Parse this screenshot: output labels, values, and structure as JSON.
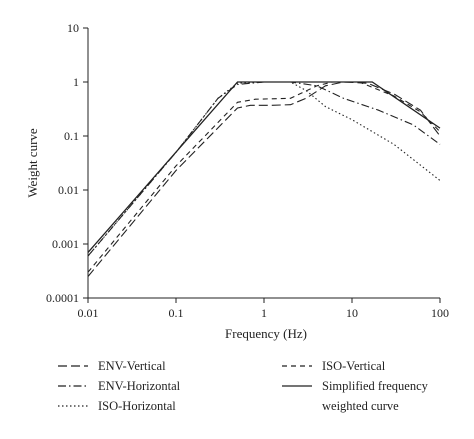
{
  "chart_data": {
    "type": "line",
    "xlabel": "Frequency (Hz)",
    "ylabel": "Weight curve",
    "x_scale": "log",
    "y_scale": "log",
    "xlim": [
      0.01,
      100
    ],
    "ylim": [
      0.0001,
      10
    ],
    "x_ticks": [
      "0.01",
      "0.1",
      "1",
      "10",
      "100"
    ],
    "y_ticks": [
      "0.0001",
      "0.001",
      "0.01",
      "0.1",
      "1",
      "10"
    ],
    "grid": false,
    "legend_position": "bottom",
    "series": [
      {
        "name": "ENV-Vertical",
        "dash": "long-dash",
        "points": [
          [
            0.01,
            0.00025
          ],
          [
            0.1,
            0.023
          ],
          [
            0.5,
            0.33
          ],
          [
            0.7,
            0.37
          ],
          [
            1.2,
            0.37
          ],
          [
            2,
            0.38
          ],
          [
            3,
            0.5
          ],
          [
            5,
            0.85
          ],
          [
            8,
            1.0
          ],
          [
            15,
            0.95
          ],
          [
            30,
            0.6
          ],
          [
            60,
            0.3
          ],
          [
            100,
            0.1
          ]
        ]
      },
      {
        "name": "ENV-Horizontal",
        "dash": "dash-dot",
        "points": [
          [
            0.01,
            0.0006
          ],
          [
            0.1,
            0.05
          ],
          [
            0.3,
            0.5
          ],
          [
            0.5,
            0.9
          ],
          [
            1,
            1.0
          ],
          [
            2,
            1.0
          ],
          [
            4,
            0.85
          ],
          [
            8,
            0.5
          ],
          [
            20,
            0.3
          ],
          [
            50,
            0.16
          ],
          [
            100,
            0.07
          ]
        ]
      },
      {
        "name": "ISO-Horizontal",
        "dash": "dotted",
        "points": [
          [
            0.01,
            0.0006
          ],
          [
            0.1,
            0.05
          ],
          [
            0.3,
            0.5
          ],
          [
            0.5,
            0.95
          ],
          [
            1,
            1.0
          ],
          [
            2,
            1.0
          ],
          [
            3,
            0.7
          ],
          [
            5,
            0.35
          ],
          [
            10,
            0.2
          ],
          [
            30,
            0.07
          ],
          [
            100,
            0.015
          ]
        ]
      },
      {
        "name": "ISO-Vertical",
        "dash": "short-dash",
        "points": [
          [
            0.01,
            0.0003
          ],
          [
            0.1,
            0.028
          ],
          [
            0.5,
            0.42
          ],
          [
            0.8,
            0.48
          ],
          [
            2,
            0.5
          ],
          [
            4,
            0.85
          ],
          [
            6,
            1.0
          ],
          [
            12,
            1.0
          ],
          [
            30,
            0.55
          ],
          [
            60,
            0.28
          ],
          [
            100,
            0.12
          ]
        ]
      },
      {
        "name": "Simplified frequency weighted curve",
        "dash": "solid",
        "points": [
          [
            0.01,
            0.0007
          ],
          [
            0.5,
            1.0
          ],
          [
            17,
            1.0
          ],
          [
            100,
            0.14
          ]
        ]
      }
    ]
  },
  "legend": {
    "left": [
      "ENV-Vertical",
      "ENV-Horizontal",
      "ISO-Horizontal"
    ],
    "right": [
      "ISO-Vertical",
      "Simplified frequency",
      "weighted curve"
    ]
  }
}
